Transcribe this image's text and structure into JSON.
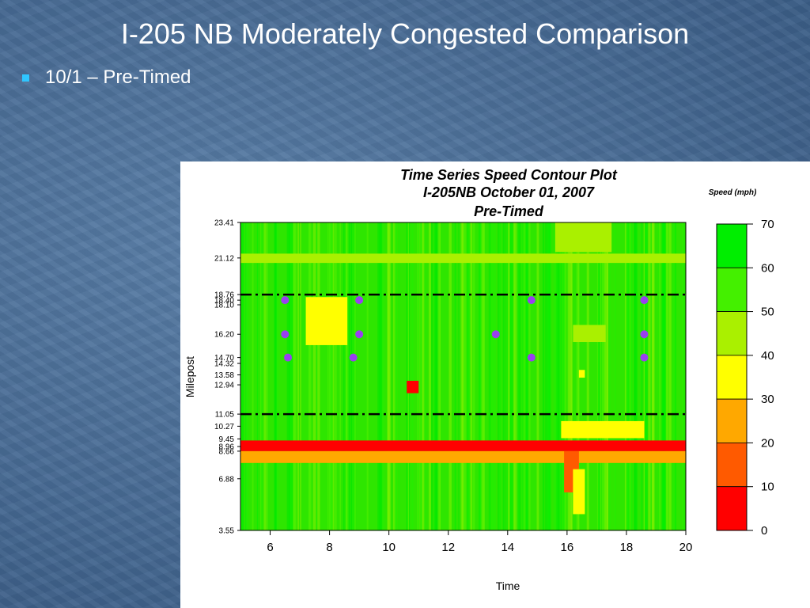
{
  "slide": {
    "title": "I-205 NB Moderately Congested Comparison",
    "bullet": "10/1 – Pre-Timed"
  },
  "chart_data": {
    "type": "heatmap",
    "title": "Time Series Speed Contour Plot",
    "subtitle_lines": [
      "I-205NB October 01, 2007",
      "Pre-Timed"
    ],
    "xlabel": "Time",
    "ylabel": "Milepost",
    "xlim": [
      5,
      20
    ],
    "ylim": [
      3.55,
      23.41
    ],
    "x_ticks": [
      6,
      8,
      10,
      12,
      14,
      16,
      18,
      20
    ],
    "y_ticks": [
      "23.41",
      "21.12",
      "18.76",
      "18.40",
      "18.10",
      "16.20",
      "14.70",
      "14.32",
      "13.58",
      "12.94",
      "11.05",
      "10.27",
      "9.45",
      "8.96",
      "8.66",
      "6.88",
      "3.55"
    ],
    "y_tick_values": [
      23.41,
      21.12,
      18.76,
      18.4,
      18.1,
      16.2,
      14.7,
      14.32,
      13.58,
      12.94,
      11.05,
      10.27,
      9.45,
      8.96,
      8.66,
      6.88,
      3.55
    ],
    "legend": {
      "title": "Speed (mph)",
      "ticks": [
        70,
        60,
        50,
        40,
        30,
        20,
        10,
        0
      ],
      "bands": [
        {
          "min": 60,
          "max": 70,
          "color": "#00ee00"
        },
        {
          "min": 50,
          "max": 60,
          "color": "#44f000"
        },
        {
          "min": 40,
          "max": 50,
          "color": "#aaf000"
        },
        {
          "min": 30,
          "max": 40,
          "color": "#ffff00"
        },
        {
          "min": 20,
          "max": 30,
          "color": "#ffa800"
        },
        {
          "min": 10,
          "max": 20,
          "color": "#ff5a00"
        },
        {
          "min": 0,
          "max": 10,
          "color": "#ff0000"
        }
      ]
    },
    "reference_lines": [
      18.76,
      11.05
    ],
    "markers": [
      {
        "x": 6.5,
        "y": 18.4
      },
      {
        "x": 9.0,
        "y": 18.4
      },
      {
        "x": 14.8,
        "y": 18.4
      },
      {
        "x": 18.6,
        "y": 18.4
      },
      {
        "x": 6.5,
        "y": 16.2
      },
      {
        "x": 9.0,
        "y": 16.2
      },
      {
        "x": 13.6,
        "y": 16.2
      },
      {
        "x": 18.6,
        "y": 16.2
      },
      {
        "x": 6.6,
        "y": 14.7
      },
      {
        "x": 8.8,
        "y": 14.7
      },
      {
        "x": 14.8,
        "y": 14.7
      },
      {
        "x": 18.6,
        "y": 14.7
      }
    ],
    "marker_color": "#9a3ff0",
    "congestion_regions": [
      {
        "x0": 5.0,
        "x1": 20.0,
        "y0": 8.66,
        "y1": 9.35,
        "speed": 5
      },
      {
        "x0": 5.0,
        "x1": 20.0,
        "y0": 7.9,
        "y1": 8.66,
        "speed": 28
      },
      {
        "x0": 15.9,
        "x1": 16.4,
        "y0": 6.0,
        "y1": 8.66,
        "speed": 12
      },
      {
        "x0": 16.2,
        "x1": 16.6,
        "y0": 4.6,
        "y1": 7.5,
        "speed": 38
      },
      {
        "x0": 7.4,
        "x1": 8.4,
        "y0": 15.8,
        "y1": 18.3,
        "speed": 22
      },
      {
        "x0": 7.2,
        "x1": 8.6,
        "y0": 15.5,
        "y1": 18.6,
        "speed": 38
      },
      {
        "x0": 10.6,
        "x1": 11.0,
        "y0": 12.4,
        "y1": 13.2,
        "speed": 8
      },
      {
        "x0": 16.4,
        "x1": 18.6,
        "y0": 9.8,
        "y1": 10.4,
        "speed": 8
      },
      {
        "x0": 15.8,
        "x1": 18.6,
        "y0": 9.5,
        "y1": 10.6,
        "speed": 35
      },
      {
        "x0": 16.2,
        "x1": 17.3,
        "y0": 15.7,
        "y1": 16.8,
        "speed": 40
      },
      {
        "x0": 16.4,
        "x1": 16.6,
        "y0": 13.4,
        "y1": 13.9,
        "speed": 35
      },
      {
        "x0": 15.6,
        "x1": 17.5,
        "y0": 21.5,
        "y1": 23.41,
        "speed": 42
      },
      {
        "x0": 5.0,
        "x1": 20.0,
        "y0": 20.8,
        "y1": 21.4,
        "speed": 44
      }
    ]
  }
}
